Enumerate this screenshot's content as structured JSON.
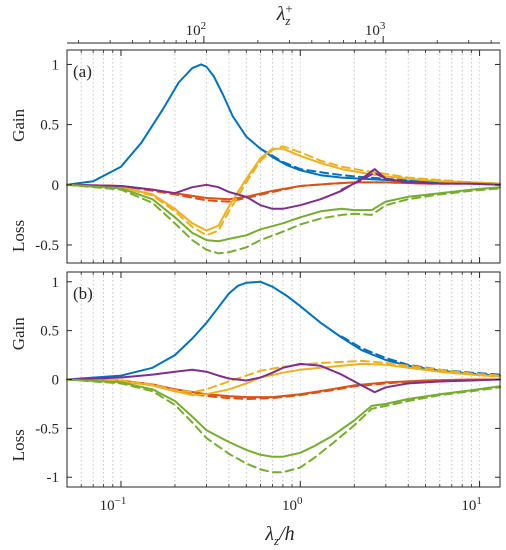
{
  "chart_data": {
    "type": "line",
    "xscale": "log",
    "xlim": [
      0.05,
      13
    ],
    "xlabel": "λz/h",
    "xticks": [
      {
        "value": 0.1,
        "base": "10",
        "exp": "−1"
      },
      {
        "value": 1,
        "base": "10",
        "exp": "0"
      },
      {
        "value": 10,
        "base": "10",
        "exp": "1"
      }
    ],
    "top_axis": {
      "label": "λz+",
      "ticks": [
        {
          "position": 0.29,
          "base": "10",
          "exp": "2"
        },
        {
          "position": 2.9,
          "base": "10",
          "exp": "3"
        }
      ]
    },
    "grid": {
      "vertical_minor_dotted": true
    },
    "colors": {
      "blue": "#0072bd",
      "orange": "#d95319",
      "yellow": "#edb120",
      "purple": "#7e2f8e",
      "green": "#77ac30"
    },
    "panels": [
      {
        "tag": "(a)",
        "ylim": [
          -0.65,
          1.12
        ],
        "yticks": [
          {
            "value": 1,
            "label": "1"
          },
          {
            "value": 0.5,
            "label": "0.5"
          },
          {
            "value": 0,
            "label": "0"
          },
          {
            "value": -0.5,
            "label": "-0.5"
          }
        ],
        "upper_label": "Gain",
        "lower_label": "Loss",
        "series": [
          {
            "color": "blue",
            "style": "solid",
            "x": [
              0.05,
              0.07,
              0.1,
              0.13,
              0.17,
              0.21,
              0.25,
              0.28,
              0.3,
              0.33,
              0.37,
              0.42,
              0.5,
              0.6,
              0.7,
              0.85,
              1,
              1.3,
              1.7,
              2.2,
              3,
              4,
              6,
              9,
              13
            ],
            "y": [
              0,
              0.03,
              0.15,
              0.35,
              0.62,
              0.85,
              0.97,
              1.0,
              0.98,
              0.9,
              0.75,
              0.57,
              0.4,
              0.3,
              0.23,
              0.16,
              0.12,
              0.08,
              0.06,
              0.05,
              0.04,
              0.03,
              0.02,
              0.01,
              0.01
            ]
          },
          {
            "color": "blue",
            "style": "dashed",
            "x": [
              0.6,
              0.8,
              1,
              1.5,
              2,
              3,
              5,
              9,
              13
            ],
            "y": [
              0.3,
              0.19,
              0.13,
              0.09,
              0.07,
              0.05,
              0.03,
              0.02,
              0.01
            ]
          },
          {
            "color": "orange",
            "style": "solid",
            "x": [
              0.05,
              0.1,
              0.15,
              0.2,
              0.3,
              0.4,
              0.5,
              0.7,
              1,
              1.5,
              2,
              3,
              5,
              9,
              13
            ],
            "y": [
              0,
              -0.01,
              -0.04,
              -0.07,
              -0.11,
              -0.12,
              -0.1,
              -0.05,
              -0.01,
              0.01,
              0.02,
              0.02,
              0.01,
              0.01,
              0
            ]
          },
          {
            "color": "orange",
            "style": "dashed",
            "x": [
              0.05,
              0.1,
              0.15,
              0.2,
              0.3,
              0.4,
              0.5,
              0.7,
              1,
              1.5,
              2,
              3,
              5,
              9,
              13
            ],
            "y": [
              0,
              -0.01,
              -0.05,
              -0.08,
              -0.13,
              -0.14,
              -0.11,
              -0.06,
              -0.01,
              0.01,
              0.02,
              0.02,
              0.01,
              0.01,
              0
            ]
          },
          {
            "color": "yellow",
            "style": "solid",
            "x": [
              0.05,
              0.1,
              0.15,
              0.2,
              0.25,
              0.3,
              0.35,
              0.4,
              0.5,
              0.6,
              0.7,
              0.8,
              1,
              1.3,
              1.7,
              2.2,
              3,
              4,
              6,
              9,
              13
            ],
            "y": [
              0,
              -0.02,
              -0.08,
              -0.2,
              -0.32,
              -0.38,
              -0.34,
              -0.18,
              0.05,
              0.22,
              0.3,
              0.3,
              0.24,
              0.18,
              0.13,
              0.1,
              0.07,
              0.05,
              0.03,
              0.02,
              0.01
            ]
          },
          {
            "color": "yellow",
            "style": "dashed",
            "x": [
              0.05,
              0.1,
              0.15,
              0.2,
              0.25,
              0.3,
              0.35,
              0.4,
              0.5,
              0.6,
              0.7,
              0.8,
              1,
              1.3,
              1.7,
              2.2,
              3,
              4,
              6,
              9,
              13
            ],
            "y": [
              0,
              -0.02,
              -0.09,
              -0.22,
              -0.35,
              -0.42,
              -0.38,
              -0.22,
              0.02,
              0.2,
              0.29,
              0.32,
              0.27,
              0.2,
              0.15,
              0.12,
              0.09,
              0.06,
              0.04,
              0.02,
              0.01
            ]
          },
          {
            "color": "purple",
            "style": "solid",
            "x": [
              0.05,
              0.1,
              0.15,
              0.2,
              0.25,
              0.3,
              0.35,
              0.4,
              0.5,
              0.6,
              0.7,
              0.8,
              1,
              1.3,
              1.7,
              2.2,
              2.6,
              3,
              4,
              6,
              9,
              13
            ],
            "y": [
              0,
              -0.01,
              -0.04,
              -0.07,
              -0.02,
              0.0,
              -0.02,
              -0.06,
              -0.1,
              -0.17,
              -0.2,
              -0.2,
              -0.17,
              -0.12,
              -0.05,
              0.05,
              0.13,
              0.05,
              0.02,
              0.01,
              0.01,
              0
            ]
          },
          {
            "color": "purple",
            "style": "dashed",
            "x": [
              1.7,
              2.2,
              2.6,
              3,
              4
            ],
            "y": [
              -0.04,
              0.04,
              0.1,
              0.05,
              0.02
            ]
          },
          {
            "color": "green",
            "style": "solid",
            "x": [
              0.05,
              0.1,
              0.15,
              0.2,
              0.25,
              0.3,
              0.35,
              0.4,
              0.5,
              0.6,
              0.8,
              1,
              1.3,
              1.7,
              2,
              2.5,
              3,
              4,
              6,
              9,
              13
            ],
            "y": [
              0,
              -0.03,
              -0.12,
              -0.27,
              -0.4,
              -0.46,
              -0.47,
              -0.45,
              -0.42,
              -0.37,
              -0.32,
              -0.27,
              -0.22,
              -0.2,
              -0.21,
              -0.21,
              -0.14,
              -0.1,
              -0.07,
              -0.04,
              -0.02
            ]
          },
          {
            "color": "green",
            "style": "dashed",
            "x": [
              0.05,
              0.1,
              0.15,
              0.2,
              0.25,
              0.3,
              0.35,
              0.4,
              0.5,
              0.6,
              0.8,
              1,
              1.3,
              1.7,
              2,
              2.5,
              3,
              4,
              6,
              9,
              13
            ],
            "y": [
              0,
              -0.04,
              -0.15,
              -0.32,
              -0.46,
              -0.54,
              -0.57,
              -0.56,
              -0.52,
              -0.46,
              -0.39,
              -0.33,
              -0.28,
              -0.25,
              -0.24,
              -0.25,
              -0.17,
              -0.12,
              -0.08,
              -0.05,
              -0.03
            ]
          }
        ]
      },
      {
        "tag": "(b)",
        "ylim": [
          -1.1,
          1.1
        ],
        "yticks": [
          {
            "value": 1,
            "label": "1"
          },
          {
            "value": 0.5,
            "label": "0.5"
          },
          {
            "value": 0,
            "label": "0"
          },
          {
            "value": -0.5,
            "label": "-0.5"
          },
          {
            "value": -1,
            "label": "-1"
          }
        ],
        "upper_label": "Gain",
        "lower_label": "Loss",
        "series": [
          {
            "color": "blue",
            "style": "solid",
            "x": [
              0.05,
              0.1,
              0.15,
              0.2,
              0.25,
              0.3,
              0.35,
              0.4,
              0.45,
              0.5,
              0.6,
              0.7,
              0.85,
              1,
              1.3,
              1.7,
              2.2,
              3,
              4,
              6,
              9,
              13
            ],
            "y": [
              0,
              0.04,
              0.12,
              0.25,
              0.42,
              0.58,
              0.74,
              0.88,
              0.96,
              0.99,
              1.0,
              0.95,
              0.85,
              0.75,
              0.58,
              0.43,
              0.3,
              0.2,
              0.14,
              0.09,
              0.06,
              0.04
            ]
          },
          {
            "color": "blue",
            "style": "dashed",
            "x": [
              1.7,
              2.2,
              3,
              4,
              6,
              9,
              13
            ],
            "y": [
              0.44,
              0.32,
              0.22,
              0.15,
              0.1,
              0.07,
              0.05
            ]
          },
          {
            "color": "orange",
            "style": "solid",
            "x": [
              0.05,
              0.1,
              0.15,
              0.2,
              0.3,
              0.4,
              0.5,
              0.7,
              1,
              1.5,
              2,
              3,
              5,
              9,
              13
            ],
            "y": [
              0,
              -0.01,
              -0.05,
              -0.1,
              -0.15,
              -0.17,
              -0.18,
              -0.18,
              -0.15,
              -0.1,
              -0.06,
              -0.03,
              -0.01,
              0,
              0
            ]
          },
          {
            "color": "orange",
            "style": "dashed",
            "x": [
              0.05,
              0.1,
              0.15,
              0.2,
              0.3,
              0.4,
              0.5,
              0.7,
              1,
              1.5,
              2,
              3,
              5,
              9,
              13
            ],
            "y": [
              0,
              -0.01,
              -0.06,
              -0.12,
              -0.17,
              -0.19,
              -0.2,
              -0.19,
              -0.16,
              -0.11,
              -0.07,
              -0.04,
              -0.01,
              0,
              0
            ]
          },
          {
            "color": "yellow",
            "style": "solid",
            "x": [
              0.05,
              0.1,
              0.15,
              0.2,
              0.25,
              0.3,
              0.4,
              0.5,
              0.6,
              0.8,
              1,
              1.3,
              1.7,
              2.2,
              3,
              4,
              6,
              9,
              13
            ],
            "y": [
              0,
              -0.02,
              -0.06,
              -0.12,
              -0.16,
              -0.15,
              -0.1,
              -0.04,
              0.02,
              0.07,
              0.1,
              0.12,
              0.14,
              0.16,
              0.15,
              0.12,
              0.08,
              0.05,
              0.03
            ]
          },
          {
            "color": "yellow",
            "style": "dashed",
            "x": [
              0.05,
              0.1,
              0.15,
              0.2,
              0.25,
              0.3,
              0.4,
              0.5,
              0.6,
              0.8,
              1,
              1.3,
              1.7,
              2.2,
              3,
              4,
              6,
              9,
              13
            ],
            "y": [
              0,
              -0.01,
              -0.05,
              -0.11,
              -0.13,
              -0.1,
              -0.02,
              0.04,
              0.09,
              0.13,
              0.15,
              0.17,
              0.18,
              0.19,
              0.17,
              0.14,
              0.1,
              0.06,
              0.04
            ]
          },
          {
            "color": "purple",
            "style": "solid",
            "x": [
              0.05,
              0.1,
              0.15,
              0.2,
              0.25,
              0.3,
              0.35,
              0.4,
              0.5,
              0.6,
              0.7,
              0.8,
              1,
              1.3,
              1.7,
              2.2,
              2.6,
              3,
              4,
              6,
              9,
              13
            ],
            "y": [
              0,
              0.02,
              0.05,
              0.08,
              0.1,
              0.08,
              0.04,
              0.01,
              -0.01,
              0.02,
              0.07,
              0.12,
              0.16,
              0.14,
              0.05,
              -0.06,
              -0.13,
              -0.08,
              -0.04,
              -0.02,
              -0.01,
              0
            ]
          },
          {
            "color": "green",
            "style": "solid",
            "x": [
              0.05,
              0.1,
              0.15,
              0.2,
              0.25,
              0.3,
              0.4,
              0.5,
              0.6,
              0.7,
              0.8,
              1,
              1.2,
              1.5,
              2,
              2.5,
              3,
              4,
              6,
              9,
              13
            ],
            "y": [
              0,
              -0.03,
              -0.1,
              -0.22,
              -0.38,
              -0.52,
              -0.64,
              -0.72,
              -0.77,
              -0.79,
              -0.79,
              -0.75,
              -0.68,
              -0.58,
              -0.42,
              -0.27,
              -0.25,
              -0.2,
              -0.15,
              -0.11,
              -0.07
            ]
          },
          {
            "color": "green",
            "style": "dashed",
            "x": [
              0.05,
              0.1,
              0.15,
              0.2,
              0.25,
              0.3,
              0.4,
              0.5,
              0.6,
              0.7,
              0.8,
              1,
              1.2,
              1.5,
              2,
              2.5,
              3,
              4,
              6,
              9,
              13
            ],
            "y": [
              0,
              -0.04,
              -0.12,
              -0.26,
              -0.44,
              -0.6,
              -0.76,
              -0.86,
              -0.92,
              -0.95,
              -0.95,
              -0.9,
              -0.8,
              -0.66,
              -0.47,
              -0.3,
              -0.27,
              -0.22,
              -0.16,
              -0.12,
              -0.08
            ]
          }
        ]
      }
    ]
  }
}
